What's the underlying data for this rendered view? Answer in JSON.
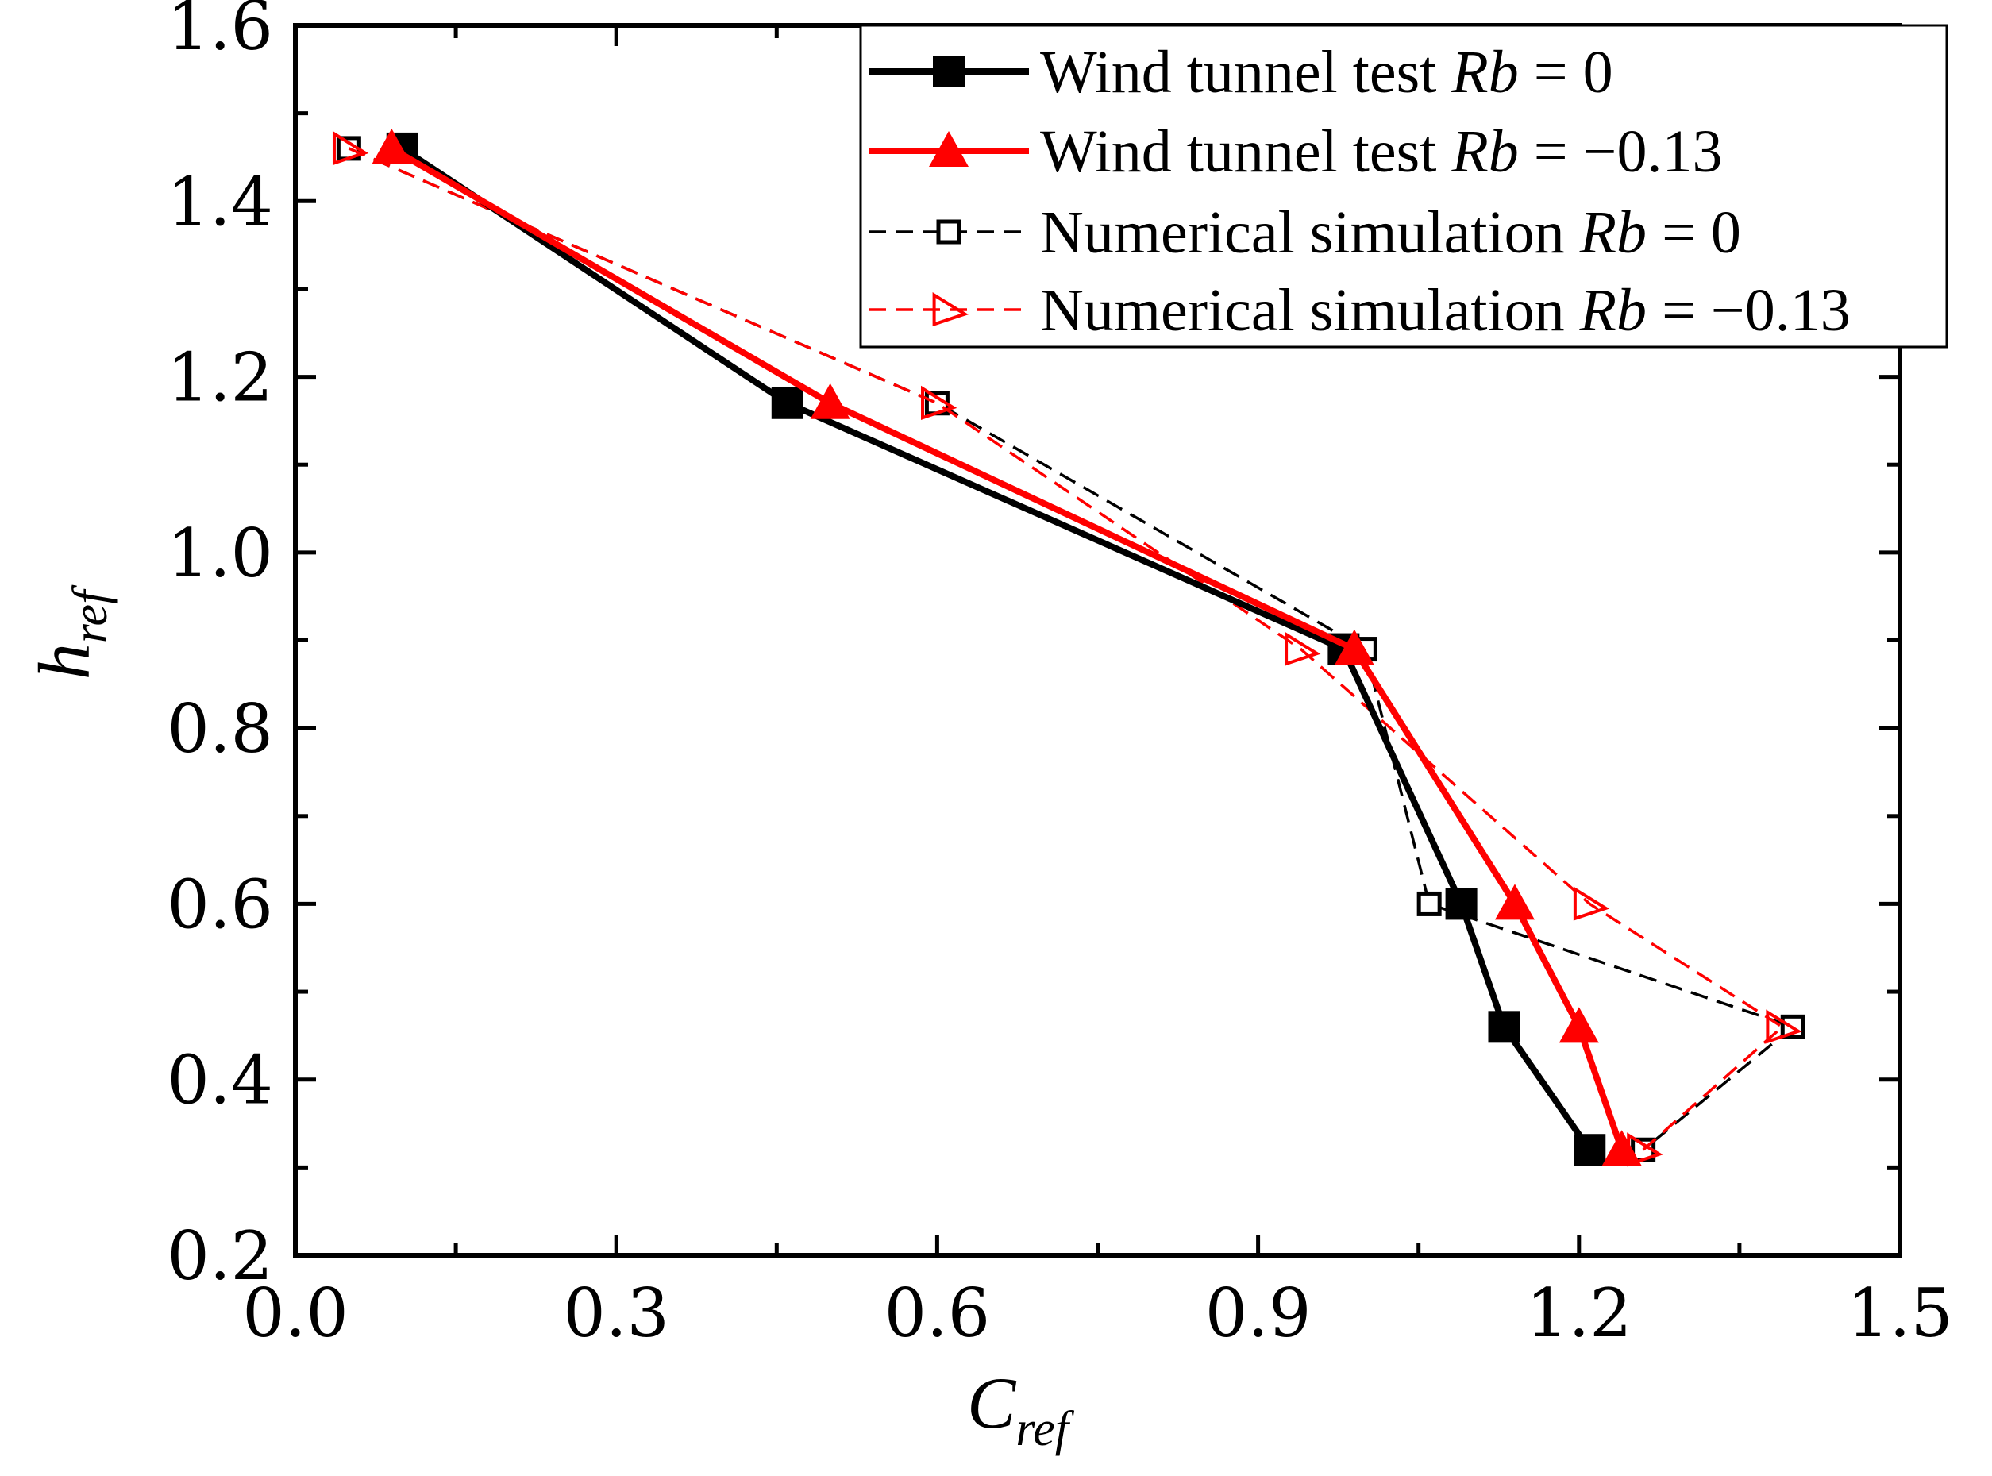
{
  "chart_data": {
    "type": "line",
    "xlabel": {
      "main": "C",
      "sub": "ref"
    },
    "ylabel": {
      "main": "h",
      "sub": "ref"
    },
    "xlim": [
      0.0,
      1.5
    ],
    "ylim": [
      0.2,
      1.6
    ],
    "xticks": [
      0.0,
      0.3,
      0.6,
      0.9,
      1.2,
      1.5
    ],
    "yticks": [
      0.2,
      0.4,
      0.6,
      0.8,
      1.0,
      1.2,
      1.4,
      1.6
    ],
    "xtick_labels": [
      "0.0",
      "0.3",
      "0.6",
      "0.9",
      "1.2",
      "1.5"
    ],
    "ytick_labels": [
      "0.2",
      "0.4",
      "0.6",
      "0.8",
      "1.0",
      "1.2",
      "1.4",
      "1.6"
    ],
    "legend": {
      "position": "top-right",
      "entries": [
        {
          "prefix": "Wind tunnel test ",
          "italic": "Rb",
          "suffix": " = 0"
        },
        {
          "prefix": "Wind tunnel test ",
          "italic": "Rb",
          "suffix": " = −0.13"
        },
        {
          "prefix": "Numerical simulation ",
          "italic": "Rb",
          "suffix": " = 0"
        },
        {
          "prefix": "Numerical simulation ",
          "italic": "Rb",
          "suffix": " = −0.13"
        }
      ]
    },
    "series": [
      {
        "color": "#000000",
        "marker": "square-filled",
        "line": "solid",
        "x": [
          0.1,
          0.46,
          0.98,
          1.09,
          1.13,
          1.21
        ],
        "y": [
          1.46,
          1.17,
          0.89,
          0.6,
          0.46,
          0.32
        ]
      },
      {
        "color": "#ff0000",
        "marker": "triangle-up-filled",
        "line": "solid",
        "x": [
          0.09,
          0.5,
          0.99,
          1.14,
          1.2,
          1.24
        ],
        "y": [
          1.46,
          1.17,
          0.89,
          0.6,
          0.46,
          0.32
        ]
      },
      {
        "color": "#000000",
        "marker": "square-open",
        "line": "dashed",
        "x": [
          0.05,
          0.6,
          1.0,
          1.06,
          1.4,
          1.26
        ],
        "y": [
          1.46,
          1.17,
          0.89,
          0.6,
          0.46,
          0.32
        ]
      },
      {
        "color": "#ff0000",
        "marker": "triangle-right-open",
        "line": "dashed",
        "x": [
          0.05,
          0.6,
          0.94,
          1.21,
          1.39,
          1.26
        ],
        "y": [
          1.46,
          1.17,
          0.89,
          0.6,
          0.46,
          0.32
        ]
      }
    ]
  }
}
